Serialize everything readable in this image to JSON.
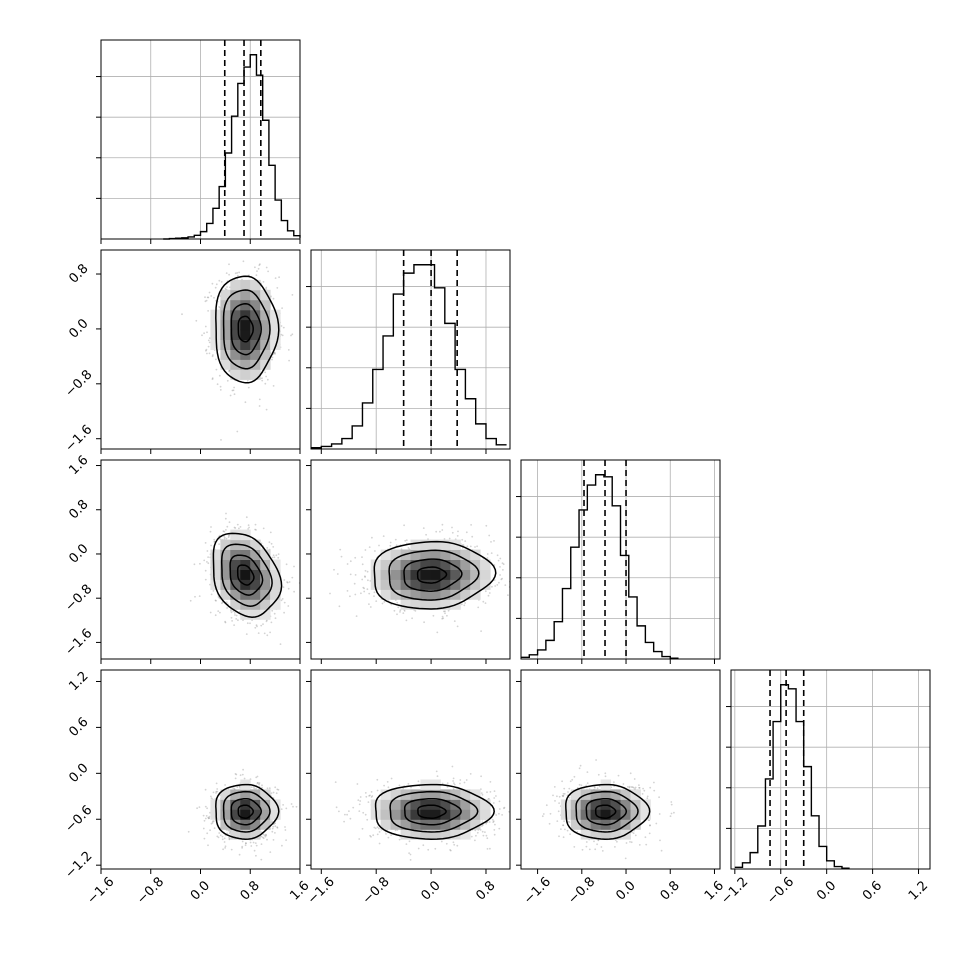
{
  "chart_data": {
    "type": "corner",
    "style": {
      "grid": true,
      "hist_color": "#000000",
      "scatter_color": "#808080",
      "grid_color": "#b0b0b0"
    },
    "params": [
      {
        "ticks": [
          -1.6,
          -0.8,
          0.0,
          0.8,
          1.6
        ],
        "tick_labels": [
          "−1.6",
          "−0.8",
          "0.0",
          "0.8",
          "1.6"
        ],
        "range": [
          -1.6,
          1.6
        ],
        "quantiles": [
          0.39,
          0.7,
          0.97
        ]
      },
      {
        "ticks": [
          -1.6,
          -0.8,
          0.0,
          0.8
        ],
        "tick_labels": [
          "−1.6",
          "−0.8",
          "0.0",
          "0.8"
        ],
        "range": [
          -1.75,
          1.15
        ],
        "quantiles": [
          -0.4,
          0.0,
          0.38
        ]
      },
      {
        "ticks": [
          -1.6,
          -0.8,
          0.0,
          0.8,
          1.6
        ],
        "tick_labels": [
          "−1.6",
          "−0.8",
          "0.0",
          "0.8",
          "1.6"
        ],
        "range": [
          -1.9,
          1.7
        ],
        "quantiles": [
          -0.76,
          -0.38,
          0.0
        ]
      },
      {
        "ticks": [
          -1.2,
          -0.6,
          0.0,
          0.6,
          1.2
        ],
        "tick_labels": [
          "−1.2",
          "−0.6",
          "0.0",
          "0.6",
          "1.2"
        ],
        "range": [
          -1.25,
          1.35
        ],
        "quantiles": [
          -0.74,
          -0.53,
          -0.3
        ]
      }
    ],
    "diagonal_histograms": [
      {
        "param": 0,
        "bin_edges": [
          -0.6,
          -0.5,
          -0.4,
          -0.3,
          -0.2,
          -0.1,
          0.0,
          0.1,
          0.2,
          0.3,
          0.4,
          0.5,
          0.6,
          0.7,
          0.8,
          0.9,
          1.0,
          1.1,
          1.2,
          1.3,
          1.4,
          1.5,
          1.6
        ],
        "counts": [
          0,
          1,
          2,
          3,
          5,
          9,
          18,
          38,
          75,
          128,
          210,
          300,
          380,
          420,
          450,
          400,
          290,
          180,
          95,
          45,
          20,
          8,
          3
        ]
      },
      {
        "param": 1,
        "bin_edges": [
          -1.75,
          -1.6,
          -1.45,
          -1.3,
          -1.15,
          -1.0,
          -0.85,
          -0.7,
          -0.55,
          -0.4,
          -0.25,
          -0.1,
          0.05,
          0.2,
          0.35,
          0.5,
          0.65,
          0.8,
          0.95,
          1.1
        ],
        "counts": [
          3,
          6,
          12,
          25,
          55,
          110,
          190,
          270,
          370,
          420,
          440,
          440,
          385,
          300,
          190,
          120,
          60,
          25,
          10
        ]
      },
      {
        "param": 2,
        "bin_edges": [
          -1.9,
          -1.75,
          -1.6,
          -1.45,
          -1.3,
          -1.15,
          -1.0,
          -0.85,
          -0.7,
          -0.55,
          -0.4,
          -0.25,
          -0.1,
          0.05,
          0.2,
          0.35,
          0.5,
          0.65,
          0.8,
          0.95
        ],
        "counts": [
          4,
          10,
          22,
          45,
          90,
          170,
          270,
          360,
          420,
          445,
          440,
          370,
          250,
          150,
          80,
          40,
          18,
          6,
          2
        ]
      },
      {
        "param": 3,
        "bin_edges": [
          -1.2,
          -1.1,
          -1.0,
          -0.9,
          -0.8,
          -0.7,
          -0.6,
          -0.5,
          -0.4,
          -0.3,
          -0.2,
          -0.1,
          0.0,
          0.1,
          0.2,
          0.3
        ],
        "counts": [
          4,
          15,
          40,
          105,
          220,
          360,
          450,
          440,
          360,
          250,
          130,
          55,
          20,
          6,
          2
        ]
      }
    ],
    "joint_distributions": [
      {
        "x_param": 0,
        "y_param": 1,
        "center": [
          0.72,
          0.0
        ],
        "sigma": [
          0.24,
          0.37
        ],
        "rho": -0.02
      },
      {
        "x_param": 0,
        "y_param": 2,
        "center": [
          0.72,
          -0.38
        ],
        "sigma": [
          0.26,
          0.36
        ],
        "rho": -0.25
      },
      {
        "x_param": 1,
        "y_param": 2,
        "center": [
          0.0,
          -0.38
        ],
        "sigma": [
          0.42,
          0.29
        ],
        "rho": 0.05
      },
      {
        "x_param": 0,
        "y_param": 3,
        "center": [
          0.72,
          -0.5
        ],
        "sigma": [
          0.24,
          0.17
        ],
        "rho": 0.0
      },
      {
        "x_param": 1,
        "y_param": 3,
        "center": [
          0.0,
          -0.5
        ],
        "sigma": [
          0.41,
          0.17
        ],
        "rho": 0.0
      },
      {
        "x_param": 2,
        "y_param": 3,
        "center": [
          -0.38,
          -0.5
        ],
        "sigma": [
          0.36,
          0.17
        ],
        "rho": 0.0
      }
    ]
  }
}
